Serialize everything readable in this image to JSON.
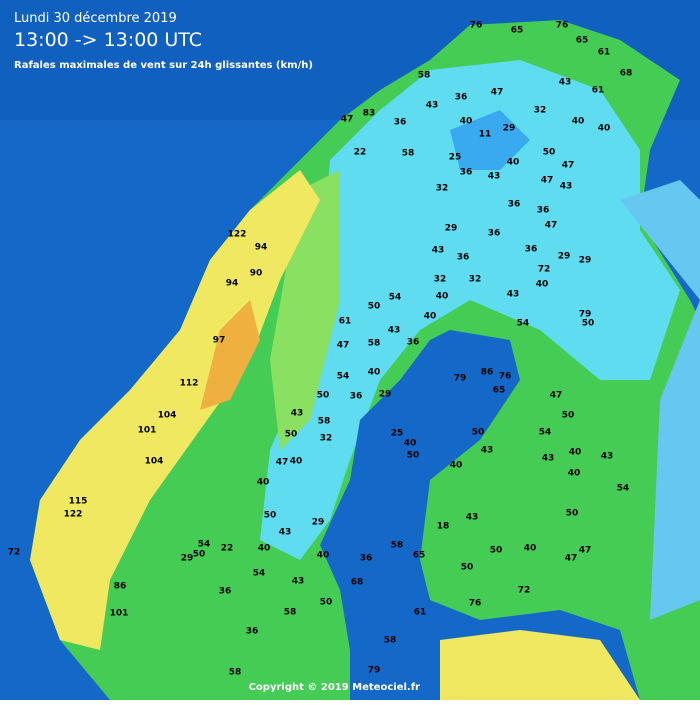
{
  "header": {
    "date": "Lundi 30 décembre 2019",
    "time": "13:00 -> 13:00 UTC",
    "subtitle": "Rafales maximales de vent sur 24h glissantes (km/h)"
  },
  "footer": "Copyright © 2019 Meteociel.fr",
  "stations": [
    76,
    65,
    76,
    65,
    61,
    68,
    58,
    43,
    36,
    47,
    32,
    43,
    61,
    40,
    40,
    40,
    11,
    29,
    47,
    83,
    36,
    22,
    58,
    25,
    40,
    50,
    47,
    36,
    43,
    47,
    43,
    32,
    36,
    36,
    47,
    29,
    36,
    43,
    36,
    36,
    72,
    29,
    29,
    40,
    43,
    32,
    32,
    40,
    50,
    54,
    40,
    43,
    47,
    36,
    54,
    50,
    79,
    61,
    58,
    54,
    40,
    36,
    29,
    50,
    58,
    43,
    50,
    32,
    40,
    47,
    40,
    50,
    43,
    29,
    40,
    54,
    40,
    25,
    40,
    50,
    79,
    86,
    76,
    65,
    50,
    43,
    40,
    47,
    50,
    54,
    43,
    40,
    40,
    43,
    54,
    50,
    47,
    47,
    40,
    50,
    43,
    18,
    50,
    65,
    58,
    36,
    68,
    50,
    58,
    43,
    36,
    36,
    50,
    29,
    54,
    22,
    72,
    122,
    94,
    94,
    90,
    112,
    104,
    101,
    115,
    122,
    104,
    97,
    101,
    86,
    58,
    79,
    72,
    76,
    61,
    58
  ]
}
